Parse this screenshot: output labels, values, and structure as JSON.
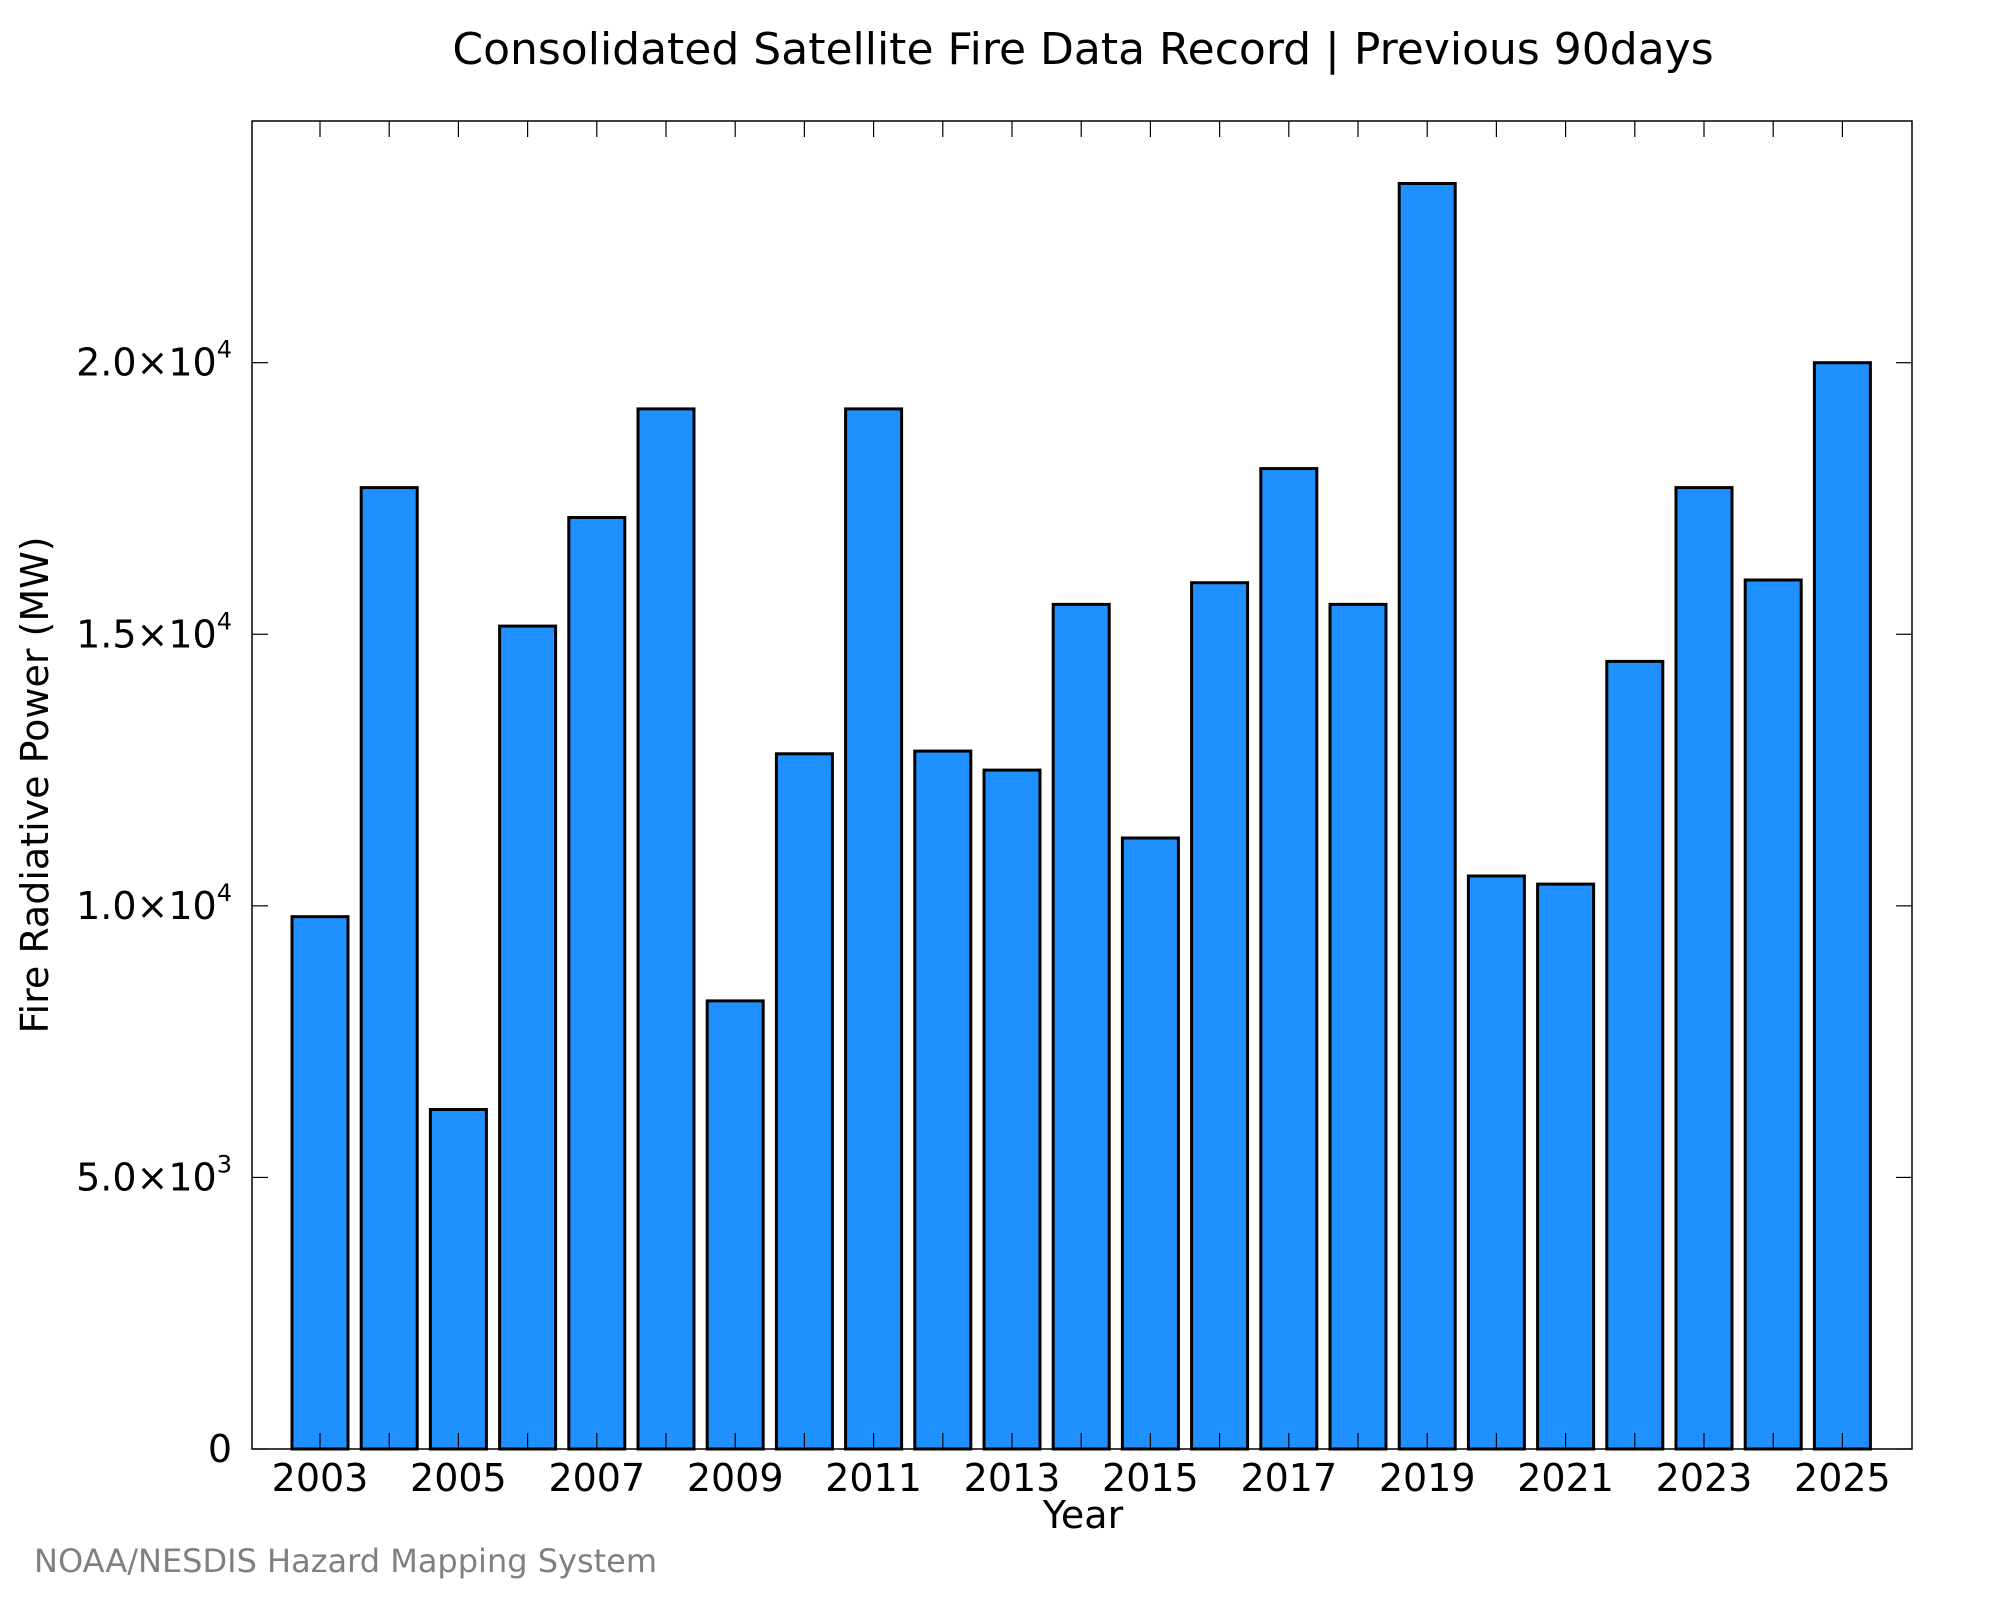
{
  "chart_data": {
    "type": "bar",
    "title": "Consolidated Satellite Fire Data Record | Previous 90days",
    "xlabel": "Year",
    "ylabel": "Fire Radiative Power (MW)",
    "categories": [
      "2003",
      "2004",
      "2005",
      "2006",
      "2007",
      "2008",
      "2009",
      "2010",
      "2011",
      "2012",
      "2013",
      "2014",
      "2015",
      "2016",
      "2017",
      "2018",
      "2019",
      "2020",
      "2021",
      "2022",
      "2023",
      "2024",
      "2025"
    ],
    "values": [
      9800,
      17700,
      6250,
      15150,
      17150,
      19150,
      8250,
      12800,
      19150,
      12850,
      12500,
      15550,
      11250,
      15950,
      18050,
      15550,
      23300,
      10550,
      10400,
      14500,
      17700,
      16000,
      20000
    ],
    "x_tick_labels": [
      "2003",
      "2005",
      "2007",
      "2009",
      "2011",
      "2013",
      "2015",
      "2017",
      "2019",
      "2021",
      "2023",
      "2025"
    ],
    "y_ticks": [
      {
        "value": 0,
        "mantissa": "0",
        "exponent": ""
      },
      {
        "value": 5000,
        "mantissa": "5.0×10",
        "exponent": "3"
      },
      {
        "value": 10000,
        "mantissa": "1.0×10",
        "exponent": "4"
      },
      {
        "value": 15000,
        "mantissa": "1.5×10",
        "exponent": "4"
      },
      {
        "value": 20000,
        "mantissa": "2.0×10",
        "exponent": "4"
      }
    ],
    "ylim": [
      0,
      24450
    ],
    "bar_color": "#1e90ff",
    "grid": false,
    "legend": "none"
  },
  "credit": "NOAA/NESDIS Hazard Mapping System"
}
